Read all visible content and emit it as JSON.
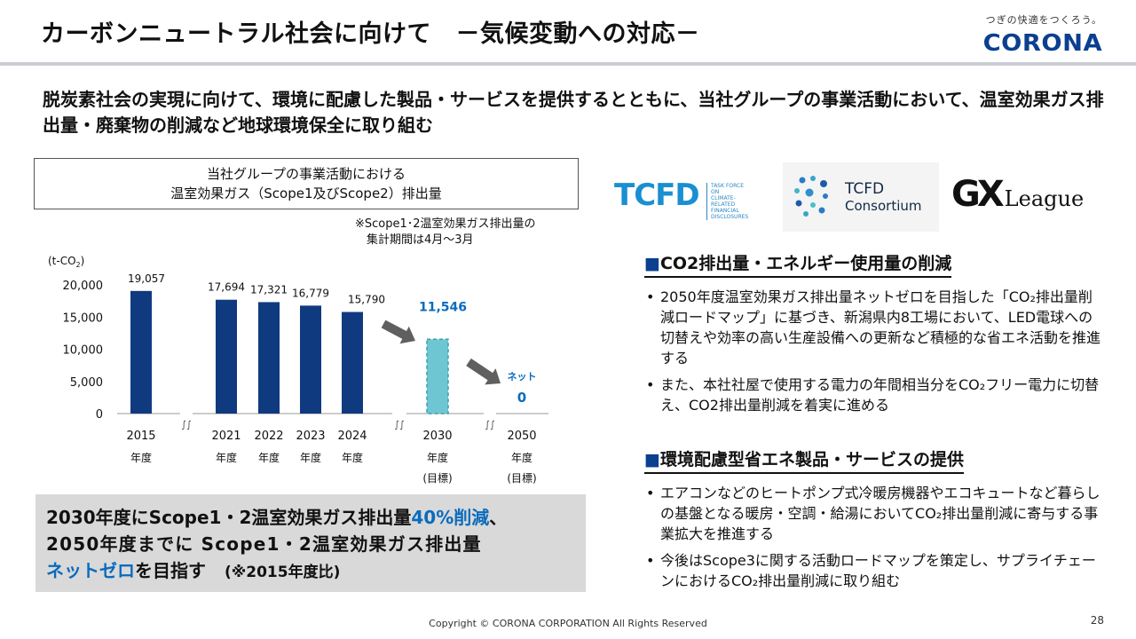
{
  "header": {
    "title": "カーボンニュートラル社会に向けて　－気候変動への対応－",
    "tagline": "つぎの快適をつくろう。",
    "brand": "CORONA"
  },
  "lead": "脱炭素社会の実現に向けて、環境に配慮した製品・サービスを提供するとともに、当社グループの事業活動において、温室効果ガス排出量・廃棄物の削減など地球環境保全に取り組む",
  "chart_box": {
    "line1": "当社グループの事業活動における",
    "line2": "温室効果ガス（Scope1及びScope2）排出量"
  },
  "chart_note": "※Scope1･2温室効果ガス排出量の\n　集計期間は4月～3月",
  "chart_data": {
    "type": "bar",
    "unit_label": "(t-CO2)",
    "ylim": [
      0,
      20000
    ],
    "yticks": [
      "0",
      "5,000",
      "10,000",
      "15,000",
      "20,000"
    ],
    "categories": [
      "2015",
      "2021",
      "2022",
      "2023",
      "2024",
      "2030",
      "2050"
    ],
    "category_sublabels": [
      "年度",
      "年度",
      "年度",
      "年度",
      "年度",
      "年度",
      "年度"
    ],
    "category_notes": [
      "",
      "",
      "",
      "",
      "",
      "(目標)",
      "(目標)"
    ],
    "values": [
      19057,
      17694,
      17321,
      16779,
      15790,
      11546,
      0
    ],
    "value_labels": [
      "19,057",
      "17,694",
      "17,321",
      "16,779",
      "15,790",
      "11,546",
      "0"
    ],
    "target_prefix_label": "ネット",
    "colors": {
      "actual": "#0f3a80",
      "target": "#6fc6d3",
      "target_text": "#0a6bbd",
      "arrow": "#5f5f5f"
    },
    "grid": false
  },
  "goal": {
    "l1_a": "2030年度にScope1・2温室効果ガス排出量",
    "l1_b": "40%削減",
    "l1_c": "、",
    "l2": "2050年度までに Scope1・2温室効果ガス排出量",
    "l3_a": "ネットゼロ",
    "l3_b": "を目指す",
    "l3_c": "(※2015年度比)"
  },
  "logos": {
    "tcfd": "TCFD",
    "tcfd_small": "TASK FORCE ON\nCLIMATE-RELATED\nFINANCIAL\nDISCLOSURES",
    "consortium_1": "TCFD",
    "consortium_2": "Consortium",
    "gx": "GX",
    "league": "League"
  },
  "section1": {
    "heading": "CO2排出量・エネルギー使用量の削減",
    "bullets": [
      "2050年度温室効果ガス排出量ネットゼロを目指した「CO₂排出量削減ロードマップ」に基づき、新潟県内8工場において、LED電球への切替えや効率の高い生産設備への更新など積極的な省エネ活動を推進する",
      "また、本社社屋で使用する電力の年間相当分をCO₂フリー電力に切替え、CO2排出量削減を着実に進める"
    ]
  },
  "section2": {
    "heading": "環境配慮型省エネ製品・サービスの提供",
    "bullets": [
      "エアコンなどのヒートポンプ式冷暖房機器やエコキュートなど暮らしの基盤となる暖房・空調・給湯においてCO₂排出量削減に寄与する事業拡大を推進する",
      "今後はScope3に関する活動ロードマップを策定し、サプライチェーンにおけるCO₂排出量削減に取り組む"
    ]
  },
  "footer": "Copyright © CORONA CORPORATION All Rights Reserved",
  "page_number": "28"
}
